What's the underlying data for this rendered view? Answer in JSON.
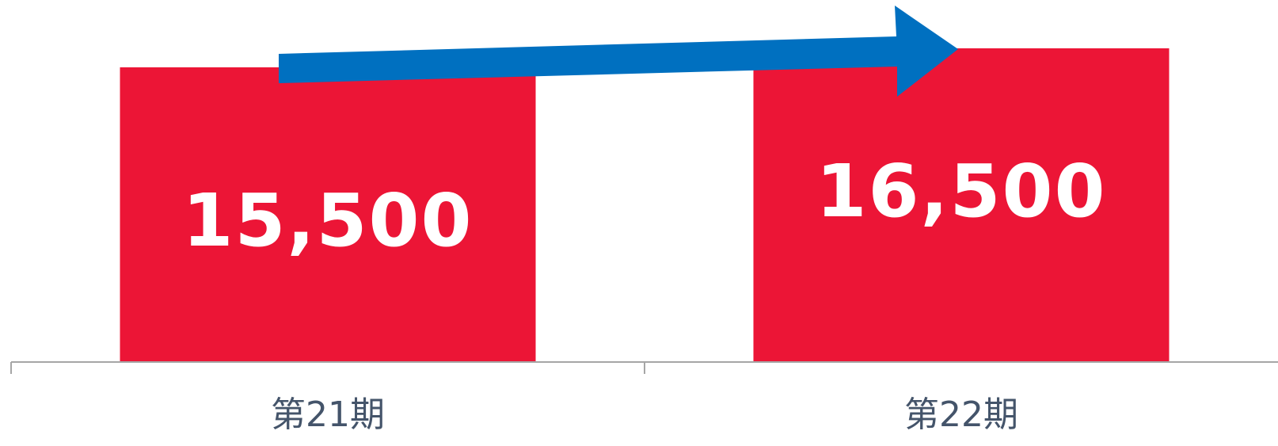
{
  "chart_data": {
    "type": "bar",
    "categories": [
      "第21期",
      "第22期"
    ],
    "values": [
      15500,
      16500
    ],
    "data_labels": [
      "15,500",
      "16,500"
    ],
    "bar_color": "#ec1536",
    "arrow_color": "#0070c0",
    "axis_color": "#a6a6a6",
    "label_color": "#44546a",
    "title": "",
    "xlabel": "",
    "ylabel": "",
    "grid": false,
    "legend": "none",
    "annotation": "arrow-up-right-icon"
  }
}
